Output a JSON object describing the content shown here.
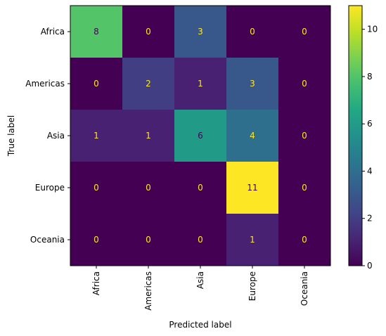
{
  "chart_data": {
    "type": "heatmap",
    "title": "",
    "xlabel": "Predicted label",
    "ylabel": "True label",
    "x_categories": [
      "Africa",
      "Americas",
      "Asia",
      "Europe",
      "Oceania"
    ],
    "y_categories": [
      "Africa",
      "Americas",
      "Asia",
      "Europe",
      "Oceania"
    ],
    "values": [
      [
        8,
        0,
        3,
        0,
        0
      ],
      [
        0,
        2,
        1,
        3,
        0
      ],
      [
        1,
        1,
        6,
        4,
        0
      ],
      [
        0,
        0,
        0,
        11,
        0
      ],
      [
        0,
        0,
        0,
        1,
        0
      ]
    ],
    "colormap": "viridis",
    "colorbar": {
      "range": [
        0,
        11
      ],
      "ticks": [
        "0",
        "2",
        "4",
        "6",
        "8",
        "10"
      ]
    },
    "label_color_dark": "#440154",
    "label_color_light": "#fde725",
    "grid": false,
    "legend": "colorbar-right"
  }
}
